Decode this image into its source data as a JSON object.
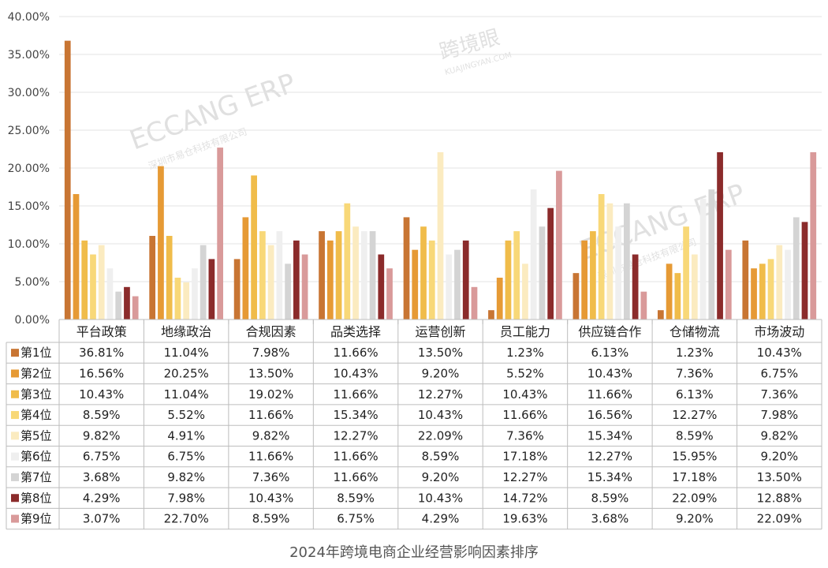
{
  "chart_data": {
    "type": "bar",
    "categories": [
      "平台政策",
      "地缘政治",
      "合规因素",
      "品类选择",
      "运营创新",
      "员工能力",
      "供应链合作",
      "仓储物流",
      "市场波动"
    ],
    "ylim": [
      0,
      40
    ],
    "yticks": [
      "0.00%",
      "5.00%",
      "10.00%",
      "15.00%",
      "20.00%",
      "25.00%",
      "30.00%",
      "35.00%",
      "40.00%"
    ],
    "ytick_values": [
      0,
      5,
      10,
      15,
      20,
      25,
      30,
      35,
      40
    ],
    "grid": true,
    "series": [
      {
        "name": "第1位",
        "color": "#C87533",
        "values": [
          36.81,
          11.04,
          7.98,
          11.66,
          13.5,
          1.23,
          6.13,
          1.23,
          10.43
        ],
        "labels": [
          "36.81%",
          "11.04%",
          "7.98%",
          "11.66%",
          "13.50%",
          "1.23%",
          "6.13%",
          "1.23%",
          "10.43%"
        ]
      },
      {
        "name": "第2位",
        "color": "#E69A35",
        "values": [
          16.56,
          20.25,
          13.5,
          10.43,
          9.2,
          5.52,
          10.43,
          7.36,
          6.75
        ],
        "labels": [
          "16.56%",
          "20.25%",
          "13.50%",
          "10.43%",
          "9.20%",
          "5.52%",
          "10.43%",
          "7.36%",
          "6.75%"
        ]
      },
      {
        "name": "第3位",
        "color": "#F0BC4A",
        "values": [
          10.43,
          11.04,
          19.02,
          11.66,
          12.27,
          10.43,
          11.66,
          6.13,
          7.36
        ],
        "labels": [
          "10.43%",
          "11.04%",
          "19.02%",
          "11.66%",
          "12.27%",
          "10.43%",
          "11.66%",
          "6.13%",
          "7.36%"
        ]
      },
      {
        "name": "第4位",
        "color": "#F8D878",
        "values": [
          8.59,
          5.52,
          11.66,
          15.34,
          10.43,
          11.66,
          16.56,
          12.27,
          7.98
        ],
        "labels": [
          "8.59%",
          "5.52%",
          "11.66%",
          "15.34%",
          "10.43%",
          "11.66%",
          "16.56%",
          "12.27%",
          "7.98%"
        ]
      },
      {
        "name": "第5位",
        "color": "#FBEBC0",
        "values": [
          9.82,
          4.91,
          9.82,
          12.27,
          22.09,
          7.36,
          15.34,
          8.59,
          9.82
        ],
        "labels": [
          "9.82%",
          "4.91%",
          "9.82%",
          "12.27%",
          "22.09%",
          "7.36%",
          "15.34%",
          "8.59%",
          "9.82%"
        ]
      },
      {
        "name": "第6位",
        "color": "#EFEFEF",
        "values": [
          6.75,
          6.75,
          11.66,
          11.66,
          8.59,
          17.18,
          12.27,
          15.95,
          9.2
        ],
        "labels": [
          "6.75%",
          "6.75%",
          "11.66%",
          "11.66%",
          "8.59%",
          "17.18%",
          "12.27%",
          "15.95%",
          "9.20%"
        ]
      },
      {
        "name": "第7位",
        "color": "#D4D4D4",
        "values": [
          3.68,
          9.82,
          7.36,
          11.66,
          9.2,
          12.27,
          15.34,
          17.18,
          13.5
        ],
        "labels": [
          "3.68%",
          "9.82%",
          "7.36%",
          "11.66%",
          "9.20%",
          "12.27%",
          "15.34%",
          "17.18%",
          "13.50%"
        ]
      },
      {
        "name": "第8位",
        "color": "#8B2B2B",
        "values": [
          4.29,
          7.98,
          10.43,
          8.59,
          10.43,
          14.72,
          8.59,
          22.09,
          12.88
        ],
        "labels": [
          "4.29%",
          "7.98%",
          "10.43%",
          "8.59%",
          "10.43%",
          "14.72%",
          "8.59%",
          "22.09%",
          "12.88%"
        ]
      },
      {
        "name": "第9位",
        "color": "#D99A9A",
        "values": [
          3.07,
          22.7,
          8.59,
          6.75,
          4.29,
          19.63,
          3.68,
          9.2,
          22.09
        ],
        "labels": [
          "3.07%",
          "22.70%",
          "8.59%",
          "6.75%",
          "4.29%",
          "19.63%",
          "3.68%",
          "9.20%",
          "22.09%"
        ]
      }
    ]
  },
  "caption": "2024年跨境电商企业经营影响因素排序",
  "watermarks": [
    "ECCANG ERP",
    "深圳市易仓科技有限公司",
    "跨境眼",
    "KUAJINGYAN.COM"
  ]
}
